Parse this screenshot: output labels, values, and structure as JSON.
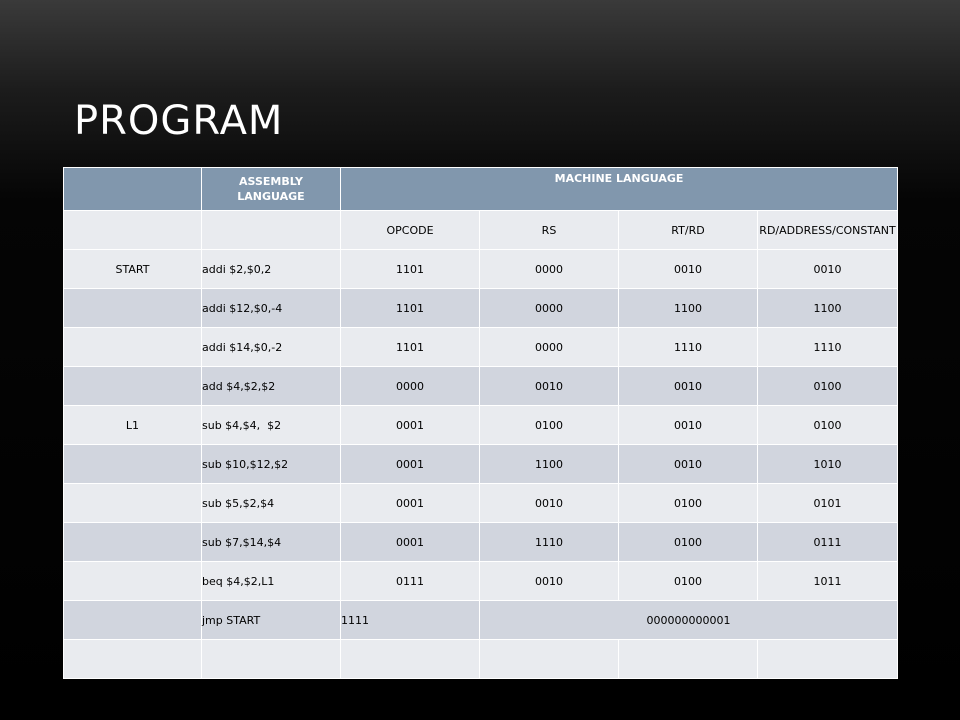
{
  "title": "PROGRAM",
  "table": {
    "header": {
      "assembly": "ASSEMBLY LANGUAGE",
      "machine": "MACHINE LANGUAGE"
    },
    "subheader": {
      "opcode": "OPCODE",
      "rs": "RS",
      "rtrd": "RT/RD",
      "rd_address": "RD/ADDRESS/CONSTANT"
    },
    "rows": [
      {
        "label": "START",
        "asm": "addi $2,$0,2",
        "opcode": "1101",
        "rs": "0000",
        "rtrd": "0010",
        "rd": "0010"
      },
      {
        "label": "",
        "asm": "addi $12,$0,-4",
        "opcode": "1101",
        "rs": "0000",
        "rtrd": "1100",
        "rd": "1100"
      },
      {
        "label": "",
        "asm": "addi $14,$0,-2",
        "opcode": "1101",
        "rs": "0000",
        "rtrd": "1110",
        "rd": "1110"
      },
      {
        "label": "",
        "asm": "add $4,$2,$2",
        "opcode": "0000",
        "rs": "0010",
        "rtrd": "0010",
        "rd": "0100"
      },
      {
        "label": "L1",
        "asm": "sub $4,$4,  $2",
        "opcode": "0001",
        "rs": "0100",
        "rtrd": "0010",
        "rd": "0100"
      },
      {
        "label": "",
        "asm": "sub $10,$12,$2",
        "opcode": "0001",
        "rs": "1100",
        "rtrd": "0010",
        "rd": "1010"
      },
      {
        "label": "",
        "asm": "sub $5,$2,$4",
        "opcode": "0001",
        "rs": "0010",
        "rtrd": "0100",
        "rd": "0101"
      },
      {
        "label": "",
        "asm": "sub $7,$14,$4",
        "opcode": "0001",
        "rs": "1110",
        "rtrd": "0100",
        "rd": "0111"
      },
      {
        "label": "",
        "asm": "beq $4,$2,L1",
        "opcode": "0111",
        "rs": "0010",
        "rtrd": "0100",
        "rd": "1011"
      }
    ],
    "jump_row": {
      "label": "",
      "asm": "jmp START",
      "opcode": "1111",
      "address": "000000000001"
    }
  }
}
